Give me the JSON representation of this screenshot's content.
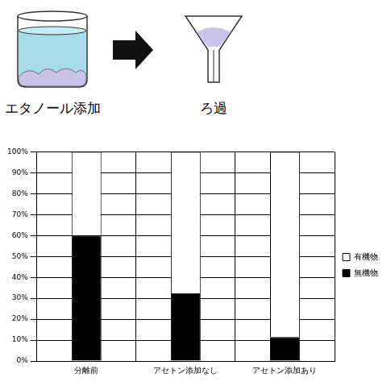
{
  "diagram": {
    "steps": [
      {
        "label": "エタノール添加"
      },
      {
        "label": "ろ過"
      }
    ]
  },
  "chart_data": {
    "type": "bar",
    "stacked": true,
    "categories": [
      "分離前",
      "アセトン添加なし",
      "アセトン添加あり"
    ],
    "series": [
      {
        "name": "無機物",
        "color": "#000000",
        "values": [
          60,
          32.5,
          11.5
        ]
      },
      {
        "name": "有機物",
        "color": "#ffffff",
        "values": [
          40,
          67.5,
          88.5
        ]
      }
    ],
    "ylim": [
      0,
      100
    ],
    "yticks": [
      {
        "value": 0,
        "label": "0%"
      },
      {
        "value": 10,
        "label": "10%"
      },
      {
        "value": 20,
        "label": "20%"
      },
      {
        "value": 30,
        "label": "30%"
      },
      {
        "value": 40,
        "label": "40%"
      },
      {
        "value": 50,
        "label": "50%"
      },
      {
        "value": 60,
        "label": "60%"
      },
      {
        "value": 70,
        "label": "70%"
      },
      {
        "value": 80,
        "label": "80%"
      },
      {
        "value": 90,
        "label": "90%"
      },
      {
        "value": 100,
        "label": "100%"
      }
    ],
    "grid": true,
    "legend": "right"
  }
}
